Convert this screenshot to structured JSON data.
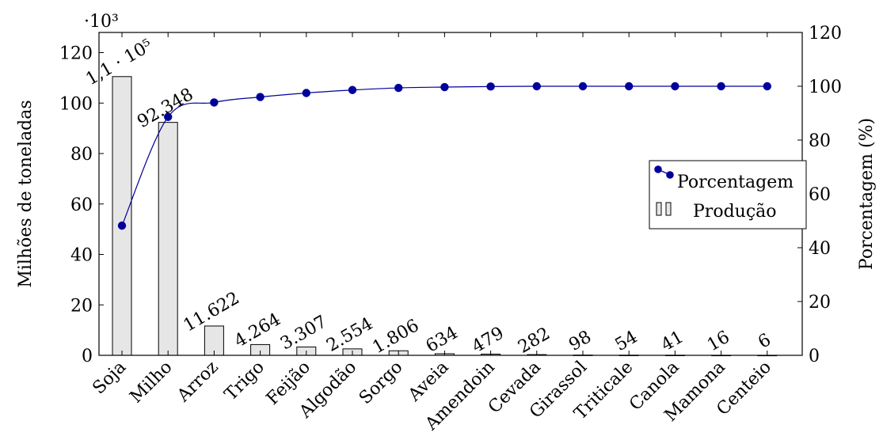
{
  "chart_data": {
    "type": "bar",
    "categories": [
      "Soja",
      "Milho",
      "Arroz",
      "Trigo",
      "Feijão",
      "Algodão",
      "Sorgo",
      "Aveia",
      "Amendoin",
      "Cevada",
      "Girassol",
      "Triticale",
      "Canola",
      "Mamona",
      "Centeio"
    ],
    "series": [
      {
        "name": "Produção",
        "type": "bar",
        "axis": "left",
        "values": [
          110.5,
          92.348,
          11.622,
          4.264,
          3.307,
          2.554,
          1.806,
          0.634,
          0.479,
          0.282,
          0.098,
          0.054,
          0.041,
          0.016,
          0.006
        ],
        "data_labels": [
          "1,1 · 10⁵",
          "92.348",
          "11.622",
          "4.264",
          "3.307",
          "2.554",
          "1.806",
          "634",
          "479",
          "282",
          "98",
          "54",
          "41",
          "16",
          "6"
        ],
        "color": "#e6e6e6"
      },
      {
        "name": "Porcentagem",
        "type": "line",
        "axis": "right",
        "values": [
          48.2,
          88.6,
          94.0,
          96.0,
          97.5,
          98.6,
          99.4,
          99.7,
          99.9,
          100.0,
          100.0,
          100.0,
          100.0,
          100.0,
          100.0
        ],
        "color": "#00009b"
      }
    ],
    "ylabel": "Milhões de toneladas",
    "ylabel_right": "Porcentagem (%)",
    "y_multiplier": "·10³",
    "ylim": [
      0,
      128
    ],
    "yticks": [
      0,
      20,
      40,
      60,
      80,
      100,
      120
    ],
    "ylim_right": [
      0,
      120
    ],
    "yticks_right": [
      0,
      20,
      40,
      60,
      80,
      100,
      120
    ],
    "grid": false,
    "legend_position": "right"
  }
}
